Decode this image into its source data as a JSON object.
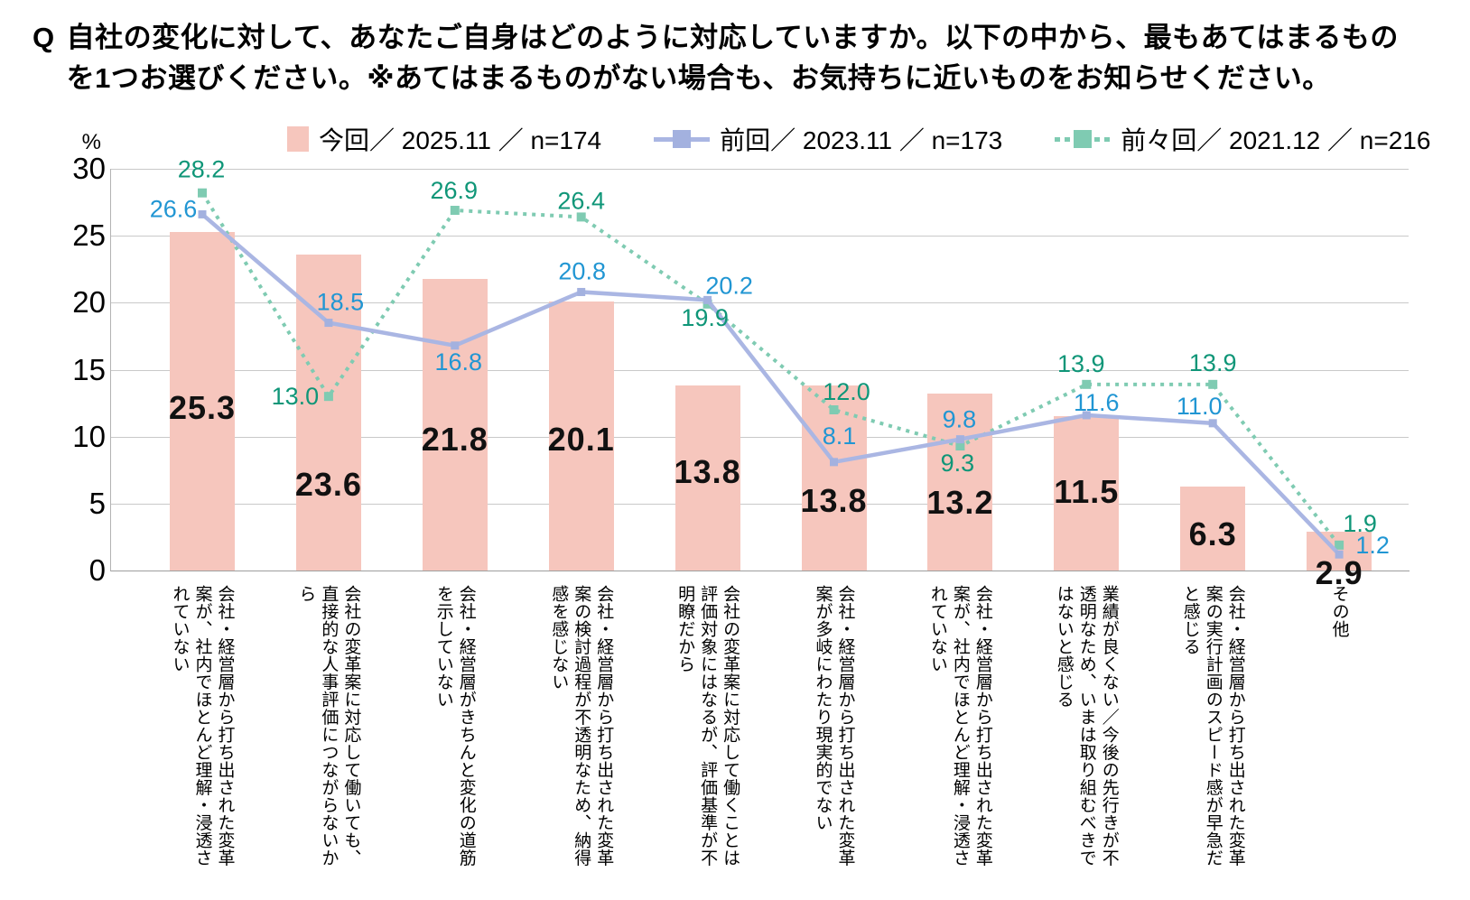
{
  "question": {
    "prefix": "Q",
    "text": "自社の変化に対して、あなたご自身はどのように対応していますか。以下の中から、最もあてはまるものを1つお選びください。※あてはまるものがない場合も、お気持ちに近いものをお知らせください。"
  },
  "legend": {
    "items": [
      {
        "label": "今回／ 2025.11 ／ n=174",
        "swatch": "bar",
        "color": "#F6C6BD",
        "marker_color": "#F6C6BD"
      },
      {
        "label": "前回／ 2023.11 ／ n=173",
        "swatch": "line",
        "color": "#AAB6E3",
        "marker_color": "#A3B1DF"
      },
      {
        "label": "前々回／ 2021.12 ／ n=216",
        "swatch": "dashed-line",
        "color": "#7FCBB2",
        "marker_color": "#7FCBB2"
      }
    ]
  },
  "chart_data": {
    "type": "bar",
    "subtype": "bar-with-line-overlays",
    "unit": "%",
    "ylim": [
      0,
      30
    ],
    "yticks": [
      30,
      25,
      20,
      15,
      10,
      5,
      0
    ],
    "grid": true,
    "legend_position": "top",
    "categories": [
      "会社・経営層から打ち出された変革案が、社内でほとんど理解・浸透されていない",
      "会社の変革案に対応して働いても、直接的な人事評価につながらないから",
      "会社・経営層がきちんと変化の道筋を示していない",
      "会社・経営層から打ち出された変革案の検討過程が不透明なため、納得感を感じない",
      "会社の変革案に対応して働くことは評価対象にはなるが、評価基準が不明瞭だから",
      "会社・経営層から打ち出された変革案が多岐にわたり現実的でない",
      "会社・経営層から打ち出された変革案が、社内でほとんど理解・浸透されていない",
      "業績が良くない／今後の先行きが不透明なため、いまは取り組むべきではないと感じる",
      "会社・経営層から打ち出された変革案の実行計画のスピード感が早急だと感じる",
      "その他"
    ],
    "series": [
      {
        "name": "今回／ 2025.11 ／ n=174",
        "type": "bar",
        "color": "#F6C6BD",
        "label_color": "#111111",
        "values": [
          25.3,
          23.6,
          21.8,
          20.1,
          13.8,
          13.8,
          13.2,
          11.5,
          6.3,
          2.9
        ]
      },
      {
        "name": "前回／ 2023.11 ／ n=173",
        "type": "line",
        "color": "#AAB6E3",
        "marker": "square",
        "marker_color": "#A3B1DF",
        "label_color": "#2196D3",
        "values": [
          26.6,
          18.5,
          16.8,
          20.8,
          20.2,
          8.1,
          9.8,
          11.6,
          11.0,
          1.2
        ]
      },
      {
        "name": "前々回／ 2021.12 ／ n=216",
        "type": "line-dashed",
        "color": "#7FCBB2",
        "marker": "square",
        "marker_color": "#7FCBB2",
        "label_color": "#0F9678",
        "values": [
          28.2,
          13.0,
          26.9,
          26.4,
          19.9,
          12.0,
          9.3,
          13.9,
          13.9,
          1.9
        ]
      }
    ]
  }
}
